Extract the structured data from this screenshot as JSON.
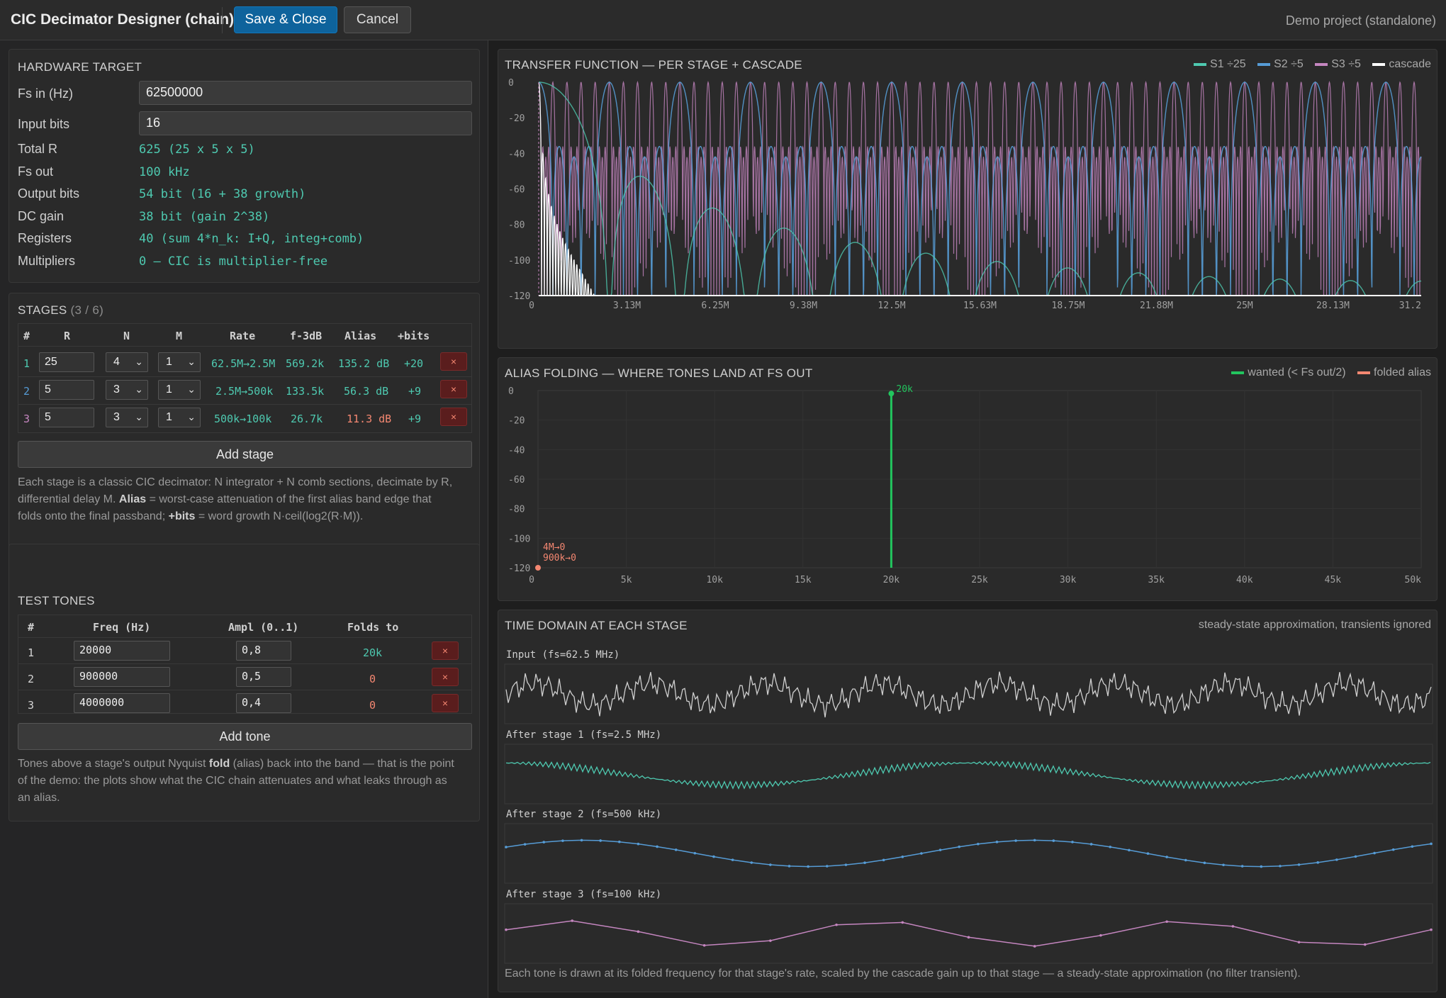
{
  "header": {
    "title": "CIC Decimator Designer (chain)",
    "save_label": "Save & Close",
    "cancel_label": "Cancel",
    "project": "Demo project (standalone)"
  },
  "hardware": {
    "title": "HARDWARE TARGET",
    "fs_in_label": "Fs in (Hz)",
    "fs_in_value": "62500000",
    "input_bits_label": "Input bits",
    "input_bits_value": "16",
    "rows": [
      {
        "label": "Total R",
        "value": "625 (25 x 5 x 5)"
      },
      {
        "label": "Fs out",
        "value": "100 kHz"
      },
      {
        "label": "Output bits",
        "value": "54 bit (16 + 38 growth)"
      },
      {
        "label": "DC gain",
        "value": "38 bit (gain 2^38)"
      },
      {
        "label": "Registers",
        "value": "40 (sum 4*n_k: I+Q, integ+comb)"
      },
      {
        "label": "Multipliers",
        "value": "0 — CIC is multiplier-free"
      }
    ]
  },
  "stages": {
    "title": "STAGES",
    "count": "(3 / 6)",
    "headers": [
      "#",
      "R",
      "N",
      "M",
      "Rate",
      "f-3dB",
      "Alias",
      "+bits"
    ],
    "rows": [
      {
        "num": "1",
        "R": "25",
        "N": "4",
        "M": "1",
        "rate": "62.5M→2.5M",
        "f3db": "569.2k",
        "alias": "135.2 dB",
        "bits": "+20"
      },
      {
        "num": "2",
        "R": "5",
        "N": "3",
        "M": "1",
        "rate": "2.5M→500k",
        "f3db": "133.5k",
        "alias": "56.3 dB",
        "bits": "+9"
      },
      {
        "num": "3",
        "R": "5",
        "N": "3",
        "M": "1",
        "rate": "500k→100k",
        "f3db": "26.7k",
        "alias": "11.3 dB",
        "bits": "+9"
      }
    ],
    "delete_label": "×",
    "add_label": "Add stage",
    "note_1": "Each stage is a classic CIC decimator: N integrator + N comb sections, decimate by R,",
    "note_2a": "differential delay M. ",
    "note_2b": "Alias",
    "note_2c": " = worst-case attenuation of the first alias band edge that",
    "note_3a": "folds onto the final passband; ",
    "note_3b": "+bits",
    "note_3c": " = word growth N·ceil(log2(R·M))."
  },
  "tones": {
    "title": "TEST TONES",
    "headers": [
      "#",
      "Freq (Hz)",
      "Ampl (0..1)",
      "Folds to"
    ],
    "rows": [
      {
        "num": "1",
        "freq": "20000",
        "ampl": "0,8",
        "folds": "20k"
      },
      {
        "num": "2",
        "freq": "900000",
        "ampl": "0,5",
        "folds": "0"
      },
      {
        "num": "3",
        "freq": "4000000",
        "ampl": "0,4",
        "folds": "0"
      }
    ],
    "delete_label": "×",
    "add_label": "Add tone",
    "note_1a": "Tones above a stage's output Nyquist ",
    "note_1b": "fold",
    "note_1c": " (alias) back into the band — that is the point",
    "note_2": "of the demo: the plots show what the CIC chain attenuates and what leaks through as",
    "note_3": "an alias."
  },
  "colors": {
    "s1": "#4ec9b0",
    "s2": "#569cd6",
    "s3": "#c586c0",
    "cascade": "#ffffff",
    "wanted": "#22c55e",
    "alias": "#f48771"
  },
  "transfer": {
    "title": "TRANSFER FUNCTION — PER STAGE + CASCADE",
    "legend": [
      "S1 ÷25",
      "S2 ÷5",
      "S3 ÷5",
      "cascade"
    ],
    "y_ticks": [
      "0",
      "-20",
      "-40",
      "-60",
      "-80",
      "-100",
      "-120"
    ],
    "x_ticks": [
      "0",
      "3.13M",
      "6.25M",
      "9.38M",
      "12.5M",
      "15.63M",
      "18.75M",
      "21.88M",
      "25M",
      "28.13M",
      "31.2"
    ]
  },
  "alias_plot": {
    "title": "ALIAS FOLDING — WHERE TONES LAND AT FS OUT",
    "legend": [
      "wanted (< Fs out/2)",
      "folded alias"
    ],
    "y_ticks": [
      "0",
      "-20",
      "-40",
      "-60",
      "-80",
      "-100",
      "-120"
    ],
    "x_ticks": [
      "0",
      "5k",
      "10k",
      "15k",
      "20k",
      "25k",
      "30k",
      "35k",
      "40k",
      "45k",
      "50k"
    ],
    "wanted_label": "20k",
    "alias_label_1": "4M→0",
    "alias_label_2": "900k→0"
  },
  "time_domain": {
    "title": "TIME DOMAIN AT EACH STAGE",
    "subtitle": "steady-state approximation, transients ignored",
    "tracks": [
      {
        "label": "Input (fs=62.5 MHz)"
      },
      {
        "label": "After stage 1 (fs=2.5 MHz)"
      },
      {
        "label": "After stage 2 (fs=500 kHz)"
      },
      {
        "label": "After stage 3 (fs=100 kHz)"
      }
    ],
    "footer": "Each tone is drawn at its folded frequency for that stage's rate, scaled by the cascade gain up to that stage — a steady-state approximation (no filter transient)."
  },
  "chart_data": [
    {
      "type": "line",
      "title": "TRANSFER FUNCTION — PER STAGE + CASCADE",
      "xlabel": "",
      "ylabel": "",
      "xlim": [
        0,
        31250000
      ],
      "ylim": [
        -120,
        0
      ],
      "series": [
        {
          "name": "S1 ÷25",
          "description_values": {
            "nulls_every_hz": 2500000,
            "first_sidelobe_db": -53
          }
        },
        {
          "name": "S2 ÷5",
          "description_values": {
            "nulls_every_hz": 500000,
            "first_sidelobe_db": -40
          }
        },
        {
          "name": "S3 ÷5",
          "description_values": {
            "nulls_every_hz": 100000,
            "first_sidelobe_db": -40
          }
        },
        {
          "name": "cascade",
          "description_values": {
            "reaches_db_at_hz": [
              [
                0,
                0
              ],
              [
                300000,
                -45
              ],
              [
                1500000,
                -100
              ],
              [
                3000000,
                -120
              ]
            ]
          }
        }
      ]
    },
    {
      "type": "scatter",
      "title": "ALIAS FOLDING — WHERE TONES LAND AT FS OUT",
      "xlim": [
        0,
        50000
      ],
      "ylim": [
        -120,
        0
      ],
      "series": [
        {
          "name": "wanted (< Fs out/2)",
          "points": [
            {
              "x": 20000,
              "y": -2,
              "label": "20k"
            }
          ]
        },
        {
          "name": "folded alias",
          "points": [
            {
              "x": 0,
              "y": -120,
              "label": "4M→0"
            },
            {
              "x": 0,
              "y": -120,
              "label": "900k→0"
            }
          ]
        }
      ]
    }
  ]
}
